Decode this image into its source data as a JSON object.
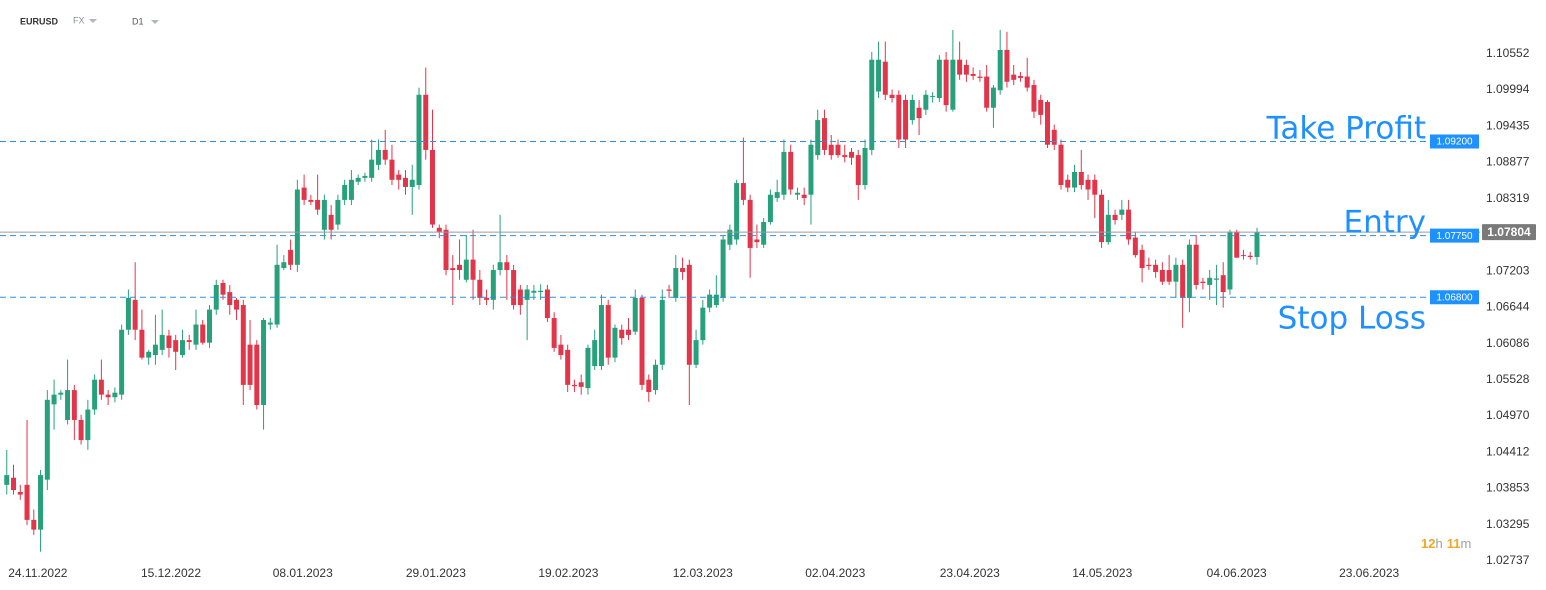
{
  "header": {
    "symbol": "EURUSD",
    "market": "FX",
    "timeframe": "D1"
  },
  "countdown": {
    "hours": "12",
    "hours_unit": "h",
    "minutes": "11",
    "minutes_unit": "m"
  },
  "chart_data": {
    "type": "candlestick",
    "up_color": "#26a17b",
    "down_color": "#e2354a",
    "level_color": "#2f8fdc",
    "level_text_color": "#1e90ff",
    "levels": [
      {
        "name": "Take Profit",
        "value": 1.092,
        "value_label": "1.09200",
        "text_side": "above"
      },
      {
        "name": "Entry",
        "value": 1.0775,
        "value_label": "1.07750",
        "text_side": "above"
      },
      {
        "name": "Stop Loss",
        "value": 1.068,
        "value_label": "1.06800",
        "text_side": "below"
      }
    ],
    "last_price": 1.07804,
    "ylim": [
      1.0229,
      1.1138
    ],
    "yticks": [
      1.10552,
      1.09994,
      1.09435,
      1.08877,
      1.08319,
      1.07203,
      1.06644,
      1.06086,
      1.05528,
      {
        "value": 1.0497,
        "label": "1.04970"
      },
      1.04412,
      1.03853,
      1.03295,
      1.02737
    ],
    "xlim": [
      -1,
      218
    ],
    "xticks": [
      {
        "value": 4.6,
        "label": "24.11.2022"
      },
      {
        "value": 24.3,
        "label": "15.12.2022"
      },
      {
        "value": 43.8,
        "label": "08.01.2023"
      },
      {
        "value": 63.5,
        "label": "29.01.2023"
      },
      {
        "value": 83.1,
        "label": "19.02.2023"
      },
      {
        "value": 103,
        "label": "12.03.2023"
      },
      {
        "value": 122.6,
        "label": "02.04.2023"
      },
      {
        "value": 142.5,
        "label": "23.04.2023"
      },
      {
        "value": 162.1,
        "label": "14.05.2023"
      },
      {
        "value": 182,
        "label": "04.06.2023"
      },
      {
        "value": 201.6,
        "label": "23.06.2023"
      }
    ],
    "values": [
      [
        1.0391,
        1.0445,
        1.0376,
        1.0406
      ],
      [
        1.0402,
        1.0422,
        1.0376,
        1.0383
      ],
      [
        1.038,
        1.0391,
        1.0368,
        1.0376
      ],
      [
        1.0391,
        1.0491,
        1.0329,
        1.0337
      ],
      [
        1.0337,
        1.0353,
        1.0314,
        1.0322
      ],
      [
        1.0322,
        1.0414,
        1.0288,
        1.0406
      ],
      [
        1.0399,
        1.0537,
        1.0383,
        1.0522
      ],
      [
        1.0515,
        1.0553,
        1.0476,
        1.053
      ],
      [
        1.053,
        1.0537,
        1.0522,
        1.0533
      ],
      [
        1.0491,
        1.0584,
        1.0484,
        1.0537
      ],
      [
        1.0537,
        1.0545,
        1.046,
        1.0491
      ],
      [
        1.0491,
        1.0499,
        1.0453,
        1.046
      ],
      [
        1.046,
        1.0522,
        1.0445,
        1.0507
      ],
      [
        1.0507,
        1.0561,
        1.0499,
        1.0553
      ],
      [
        1.0553,
        1.0584,
        1.0522,
        1.053
      ],
      [
        1.053,
        1.0537,
        1.0514,
        1.0526
      ],
      [
        1.0526,
        1.0541,
        1.0518,
        1.0533
      ],
      [
        1.053,
        1.0638,
        1.0522,
        1.063
      ],
      [
        1.063,
        1.0692,
        1.0622,
        1.0679
      ],
      [
        1.0676,
        1.0734,
        1.0614,
        1.063
      ],
      [
        1.063,
        1.0661,
        1.0584,
        1.0587
      ],
      [
        1.0587,
        1.0599,
        1.0576,
        1.0596
      ],
      [
        1.0591,
        1.0653,
        1.0576,
        1.0607
      ],
      [
        1.0599,
        1.0661,
        1.0591,
        1.0622
      ],
      [
        1.0621,
        1.063,
        1.0587,
        1.0602
      ],
      [
        1.0614,
        1.0622,
        1.0568,
        1.0596
      ],
      [
        1.0591,
        1.063,
        1.0587,
        1.0614
      ],
      [
        1.0614,
        1.0622,
        1.0599,
        1.0611
      ],
      [
        1.0607,
        1.0661,
        1.0599,
        1.0638
      ],
      [
        1.0638,
        1.0645,
        1.0607,
        1.061
      ],
      [
        1.061,
        1.0668,
        1.0602,
        1.0661
      ],
      [
        1.0661,
        1.0707,
        1.0653,
        1.0699
      ],
      [
        1.0702,
        1.0707,
        1.0676,
        1.0684
      ],
      [
        1.0688,
        1.0699,
        1.0653,
        1.0668
      ],
      [
        1.0676,
        1.0679,
        1.0645,
        1.0661
      ],
      [
        1.0668,
        1.0676,
        1.0514,
        1.0545
      ],
      [
        1.0607,
        1.0645,
        1.0537,
        1.0545
      ],
      [
        1.0607,
        1.0614,
        1.0507,
        1.0514
      ],
      [
        1.0514,
        1.0648,
        1.0476,
        1.0645
      ],
      [
        1.0638,
        1.0648,
        1.063,
        1.0641
      ],
      [
        1.0638,
        1.0761,
        1.0633,
        1.073
      ],
      [
        1.0725,
        1.0745,
        1.0722,
        1.0734
      ],
      [
        1.0753,
        1.0769,
        1.0722,
        1.073
      ],
      [
        1.073,
        1.0861,
        1.0719,
        1.0846
      ],
      [
        1.0849,
        1.0869,
        1.0822,
        1.083
      ],
      [
        1.083,
        1.0838,
        1.0822,
        1.0827
      ],
      [
        1.083,
        1.0869,
        1.0807,
        1.0815
      ],
      [
        1.0784,
        1.0838,
        1.0769,
        1.083
      ],
      [
        1.0807,
        1.0822,
        1.0769,
        1.0784
      ],
      [
        1.0792,
        1.0838,
        1.0784,
        1.083
      ],
      [
        1.083,
        1.0861,
        1.0822,
        1.0853
      ],
      [
        1.083,
        1.0876,
        1.0822,
        1.0861
      ],
      [
        1.0858,
        1.0869,
        1.0853,
        1.0864
      ],
      [
        1.0864,
        1.0872,
        1.0858,
        1.0867
      ],
      [
        1.0864,
        1.0923,
        1.0858,
        1.0892
      ],
      [
        1.0884,
        1.0923,
        1.0876,
        1.0907
      ],
      [
        1.0907,
        1.0938,
        1.0884,
        1.0892
      ],
      [
        1.0892,
        1.0915,
        1.0853,
        1.0861
      ],
      [
        1.0869,
        1.0876,
        1.0846,
        1.0861
      ],
      [
        1.0864,
        1.0876,
        1.0838,
        1.085
      ],
      [
        1.085,
        1.0884,
        1.0807,
        1.0861
      ],
      [
        1.0853,
        1.1003,
        1.0846,
        1.0992
      ],
      [
        1.0992,
        1.1034,
        1.0892,
        1.0907
      ],
      [
        1.0907,
        1.0969,
        1.0787,
        1.0792
      ],
      [
        1.0787,
        1.0792,
        1.0771,
        1.0781
      ],
      [
        1.0784,
        1.0792,
        1.0714,
        1.0722
      ],
      [
        1.0725,
        1.0745,
        1.0668,
        1.0722
      ],
      [
        1.073,
        1.0769,
        1.0707,
        1.0722
      ],
      [
        1.0707,
        1.0776,
        1.0703,
        1.0738
      ],
      [
        1.0738,
        1.0784,
        1.0676,
        1.0707
      ],
      [
        1.0707,
        1.0722,
        1.0668,
        1.0679
      ],
      [
        1.0679,
        1.0692,
        1.0668,
        1.0676
      ],
      [
        1.0676,
        1.073,
        1.0661,
        1.0722
      ],
      [
        1.0722,
        1.0807,
        1.0714,
        1.0734
      ],
      [
        1.0734,
        1.0745,
        1.0676,
        1.0722
      ],
      [
        1.0722,
        1.073,
        1.0661,
        1.0668
      ],
      [
        1.0692,
        1.0699,
        1.0653,
        1.0668
      ],
      [
        1.0676,
        1.0699,
        1.0614,
        1.0692
      ],
      [
        1.0687,
        1.0699,
        1.0676,
        1.069
      ],
      [
        1.0688,
        1.07,
        1.0676,
        1.069
      ],
      [
        1.0692,
        1.0699,
        1.0642,
        1.0648
      ],
      [
        1.0648,
        1.0657,
        1.0596,
        1.0602
      ],
      [
        1.0607,
        1.0622,
        1.0584,
        1.0591
      ],
      [
        1.0599,
        1.0607,
        1.0534,
        1.0545
      ],
      [
        1.0545,
        1.0553,
        1.0534,
        1.0543
      ],
      [
        1.0549,
        1.0561,
        1.053,
        1.0542
      ],
      [
        1.054,
        1.0607,
        1.053,
        1.0602
      ],
      [
        1.0574,
        1.063,
        1.0568,
        1.0614
      ],
      [
        1.0574,
        1.0684,
        1.0568,
        1.0668
      ],
      [
        1.0668,
        1.0676,
        1.0576,
        1.0587
      ],
      [
        1.0587,
        1.0638,
        1.058,
        1.0633
      ],
      [
        1.063,
        1.0638,
        1.0607,
        1.0617
      ],
      [
        1.063,
        1.0648,
        1.0614,
        1.0622
      ],
      [
        1.0627,
        1.0692,
        1.0622,
        1.0679
      ],
      [
        1.0679,
        1.0684,
        1.0537,
        1.0545
      ],
      [
        1.0553,
        1.0561,
        1.0519,
        1.0534
      ],
      [
        1.0537,
        1.0584,
        1.053,
        1.0576
      ],
      [
        1.0576,
        1.0692,
        1.0568,
        1.0676
      ],
      [
        1.0692,
        1.0699,
        1.0679,
        1.069
      ],
      [
        1.0679,
        1.0745,
        1.0673,
        1.0725
      ],
      [
        1.0725,
        1.0741,
        1.0707,
        1.0719
      ],
      [
        1.073,
        1.0738,
        1.0514,
        1.0576
      ],
      [
        1.0576,
        1.063,
        1.0571,
        1.0614
      ],
      [
        1.0614,
        1.0676,
        1.0607,
        1.0664
      ],
      [
        1.0664,
        1.0692,
        1.0657,
        1.0684
      ],
      [
        1.0668,
        1.0714,
        1.0664,
        1.0684
      ],
      [
        1.0679,
        1.0776,
        1.0673,
        1.0769
      ],
      [
        1.0761,
        1.0792,
        1.0753,
        1.0784
      ],
      [
        1.0769,
        1.0861,
        1.0761,
        1.0856
      ],
      [
        1.0856,
        1.0926,
        1.0822,
        1.083
      ],
      [
        1.083,
        1.0838,
        1.071,
        1.0756
      ],
      [
        1.0769,
        1.0792,
        1.0756,
        1.0765
      ],
      [
        1.0761,
        1.0802,
        1.0756,
        1.0796
      ],
      [
        1.0796,
        1.0846,
        1.0792,
        1.0838
      ],
      [
        1.0833,
        1.0861,
        1.0827,
        1.0842
      ],
      [
        1.0838,
        1.0923,
        1.083,
        1.0904
      ],
      [
        1.0904,
        1.0915,
        1.0838,
        1.0846
      ],
      [
        1.0838,
        1.0849,
        1.083,
        1.0841
      ],
      [
        1.0838,
        1.0849,
        1.0822,
        1.0833
      ],
      [
        1.0838,
        1.0923,
        1.0792,
        1.0915
      ],
      [
        1.0899,
        1.0969,
        1.0892,
        1.0953
      ],
      [
        1.0956,
        1.0969,
        1.0899,
        1.0907
      ],
      [
        1.0915,
        1.093,
        1.0892,
        1.0899
      ],
      [
        1.0915,
        1.0923,
        1.0895,
        1.0899
      ],
      [
        1.0899,
        1.0915,
        1.0888,
        1.0896
      ],
      [
        1.0904,
        1.091,
        1.0884,
        1.0895
      ],
      [
        1.0899,
        1.0907,
        1.083,
        1.0853
      ],
      [
        1.0853,
        1.0923,
        1.0846,
        1.091
      ],
      [
        1.0907,
        1.1058,
        1.0899,
        1.1046
      ],
      [
        1.0997,
        1.1074,
        1.0987,
        1.1046
      ],
      [
        1.1043,
        1.1074,
        1.0984,
        1.0992
      ],
      [
        1.0992,
        1.1,
        1.098,
        1.0987
      ],
      [
        1.0992,
        1.0999,
        1.091,
        1.0923
      ],
      [
        1.0984,
        1.0992,
        1.091,
        1.0923
      ],
      [
        1.0953,
        1.0992,
        1.0946,
        1.0984
      ],
      [
        1.0972,
        1.0984,
        1.093,
        1.0956
      ],
      [
        1.0969,
        1.0999,
        1.0961,
        1.0992
      ],
      [
        1.0989,
        1.0996,
        1.098,
        1.099
      ],
      [
        1.0987,
        1.1053,
        1.0981,
        1.1046
      ],
      [
        1.1046,
        1.1058,
        1.0966,
        1.0976
      ],
      [
        1.0969,
        1.1092,
        1.0966,
        1.1046
      ],
      [
        1.1046,
        1.1074,
        1.1015,
        1.1023
      ],
      [
        1.1038,
        1.1046,
        1.1012,
        1.1023
      ],
      [
        1.1024,
        1.1034,
        1.1015,
        1.1021
      ],
      [
        1.102,
        1.103,
        1.1012,
        1.1018
      ],
      [
        1.102,
        1.1038,
        1.0966,
        1.0972
      ],
      [
        1.0972,
        1.1007,
        1.0941,
        1.1003
      ],
      [
        1.0999,
        1.1092,
        1.0992,
        1.1061
      ],
      [
        1.1061,
        1.1089,
        1.1003,
        1.1012
      ],
      [
        1.1023,
        1.1038,
        1.1007,
        1.1015
      ],
      [
        1.1021,
        1.1027,
        1.1012,
        1.1018
      ],
      [
        1.102,
        1.1049,
        1.0997,
        1.1003
      ],
      [
        1.1007,
        1.1015,
        1.0956,
        1.0966
      ],
      [
        1.0984,
        1.0992,
        1.0946,
        1.0961
      ],
      [
        1.0981,
        1.0984,
        1.091,
        1.0915
      ],
      [
        1.0938,
        1.0946,
        1.0907,
        1.0915
      ],
      [
        1.0915,
        1.0923,
        1.0846,
        1.0853
      ],
      [
        1.0861,
        1.0869,
        1.0842,
        1.0849
      ],
      [
        1.0849,
        1.0884,
        1.0842,
        1.0873
      ],
      [
        1.0873,
        1.0907,
        1.0846,
        1.0853
      ],
      [
        1.0861,
        1.0869,
        1.083,
        1.0846
      ],
      [
        1.0861,
        1.0869,
        1.0802,
        1.0838
      ],
      [
        1.0838,
        1.0846,
        1.0756,
        1.0765
      ],
      [
        1.0765,
        1.083,
        1.0761,
        1.0807
      ],
      [
        1.0807,
        1.0815,
        1.0792,
        1.0799
      ],
      [
        1.0807,
        1.083,
        1.0799,
        1.0815
      ],
      [
        1.0815,
        1.083,
        1.0761,
        1.0769
      ],
      [
        1.0772,
        1.0781,
        1.0741,
        1.0745
      ],
      [
        1.0753,
        1.0761,
        1.0703,
        1.0725
      ],
      [
        1.073,
        1.0741,
        1.0722,
        1.0728
      ],
      [
        1.073,
        1.0738,
        1.071,
        1.0719
      ],
      [
        1.0722,
        1.0734,
        1.0699,
        1.0704
      ],
      [
        1.0722,
        1.0745,
        1.0699,
        1.0704
      ],
      [
        1.0704,
        1.0741,
        1.0679,
        1.073
      ],
      [
        1.073,
        1.0738,
        1.0633,
        1.0679
      ],
      [
        1.0679,
        1.0769,
        1.0657,
        1.0761
      ],
      [
        1.0761,
        1.0776,
        1.0692,
        1.0699
      ],
      [
        1.0704,
        1.071,
        1.0692,
        1.0702
      ],
      [
        1.0699,
        1.0722,
        1.0676,
        1.071
      ],
      [
        1.0707,
        1.073,
        1.0668,
        1.0709
      ],
      [
        1.0714,
        1.0734,
        1.0664,
        1.0688
      ],
      [
        1.0692,
        1.0784,
        1.0684,
        1.0781
      ],
      [
        1.0781,
        1.0784,
        1.0741,
        1.0741
      ],
      [
        1.0745,
        1.0753,
        1.0738,
        1.0744
      ],
      [
        1.0744,
        1.075,
        1.0738,
        1.0742
      ],
      [
        1.0742,
        1.0787,
        1.073,
        1.07804
      ]
    ]
  }
}
